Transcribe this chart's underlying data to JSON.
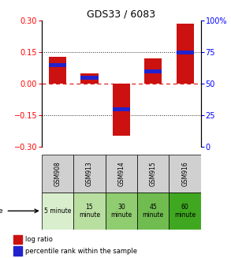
{
  "title": "GDS33 / 6083",
  "samples": [
    "GSM908",
    "GSM913",
    "GSM914",
    "GSM915",
    "GSM916"
  ],
  "time_labels": [
    "5 minute",
    "15\nminute",
    "30\nminute",
    "45\nminute",
    "60\nminute"
  ],
  "time_colors": [
    "#d8eecc",
    "#b8dea0",
    "#90cc70",
    "#70bc50",
    "#40a820"
  ],
  "log_ratios": [
    0.13,
    0.05,
    -0.245,
    0.12,
    0.285
  ],
  "percentile_ranks": [
    65,
    55,
    30,
    60,
    75
  ],
  "bar_color_red": "#cc1111",
  "bar_color_blue": "#2222cc",
  "ylim_left": [
    -0.3,
    0.3
  ],
  "ylim_right": [
    0,
    100
  ],
  "yticks_left": [
    -0.3,
    -0.15,
    0,
    0.15,
    0.3
  ],
  "yticks_right": [
    0,
    25,
    50,
    75,
    100
  ],
  "bar_width": 0.55,
  "background_plot": "#ffffff",
  "zero_line_color": "#dd2222",
  "dotted_line_color": "#222222",
  "gsm_bg": "#d0d0d0"
}
